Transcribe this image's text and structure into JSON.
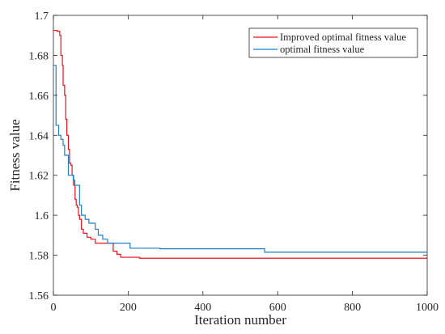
{
  "chart_data": {
    "type": "line",
    "xlabel": "Iteration number",
    "ylabel": "Fitness value",
    "xlim": [
      0,
      1000
    ],
    "ylim": [
      1.56,
      1.7
    ],
    "xticks": [
      0,
      200,
      400,
      600,
      800,
      1000
    ],
    "xtick_labels": [
      "0",
      "200",
      "400",
      "600",
      "800",
      "1000"
    ],
    "yticks": [
      1.56,
      1.58,
      1.6,
      1.62,
      1.64,
      1.66,
      1.68,
      1.7
    ],
    "ytick_labels": [
      "1.56",
      "1.58",
      "1.6",
      "1.62",
      "1.64",
      "1.66",
      "1.68",
      "1.7"
    ],
    "grid": false,
    "legend_position": "top-right",
    "step": true,
    "series": [
      {
        "name": "Improved optimal fitness value",
        "color": "#e8101a",
        "points": [
          [
            0,
            1.6925
          ],
          [
            10,
            1.692
          ],
          [
            17,
            1.69
          ],
          [
            20,
            1.68
          ],
          [
            24,
            1.675
          ],
          [
            26,
            1.665
          ],
          [
            30,
            1.66
          ],
          [
            33,
            1.648
          ],
          [
            36,
            1.64
          ],
          [
            40,
            1.633
          ],
          [
            43,
            1.626
          ],
          [
            47,
            1.625
          ],
          [
            50,
            1.62
          ],
          [
            54,
            1.615
          ],
          [
            58,
            1.608
          ],
          [
            61,
            1.605
          ],
          [
            64,
            1.604
          ],
          [
            67,
            1.6
          ],
          [
            70,
            1.598
          ],
          [
            75,
            1.593
          ],
          [
            80,
            1.591
          ],
          [
            90,
            1.589
          ],
          [
            100,
            1.588
          ],
          [
            112,
            1.586
          ],
          [
            125,
            1.586
          ],
          [
            135,
            1.586
          ],
          [
            150,
            1.586
          ],
          [
            160,
            1.582
          ],
          [
            170,
            1.5805
          ],
          [
            180,
            1.579
          ],
          [
            200,
            1.579
          ],
          [
            230,
            1.5785
          ],
          [
            300,
            1.5785
          ],
          [
            500,
            1.5785
          ],
          [
            800,
            1.5785
          ],
          [
            1000,
            1.5785
          ]
        ]
      },
      {
        "name": "optimal fitness value",
        "color": "#1f7fc9",
        "points": [
          [
            0,
            1.675
          ],
          [
            7,
            1.645
          ],
          [
            14,
            1.64
          ],
          [
            20,
            1.638
          ],
          [
            26,
            1.635
          ],
          [
            30,
            1.63
          ],
          [
            37,
            1.63
          ],
          [
            40,
            1.62
          ],
          [
            48,
            1.62
          ],
          [
            53,
            1.6175
          ],
          [
            57,
            1.615
          ],
          [
            67,
            1.615
          ],
          [
            70,
            1.605
          ],
          [
            75,
            1.6
          ],
          [
            85,
            1.598
          ],
          [
            95,
            1.596
          ],
          [
            105,
            1.596
          ],
          [
            112,
            1.593
          ],
          [
            120,
            1.59
          ],
          [
            132,
            1.588
          ],
          [
            145,
            1.586
          ],
          [
            200,
            1.586
          ],
          [
            205,
            1.5835
          ],
          [
            280,
            1.5835
          ],
          [
            285,
            1.5832
          ],
          [
            560,
            1.5832
          ],
          [
            565,
            1.5815
          ],
          [
            1000,
            1.5815
          ]
        ]
      }
    ]
  }
}
